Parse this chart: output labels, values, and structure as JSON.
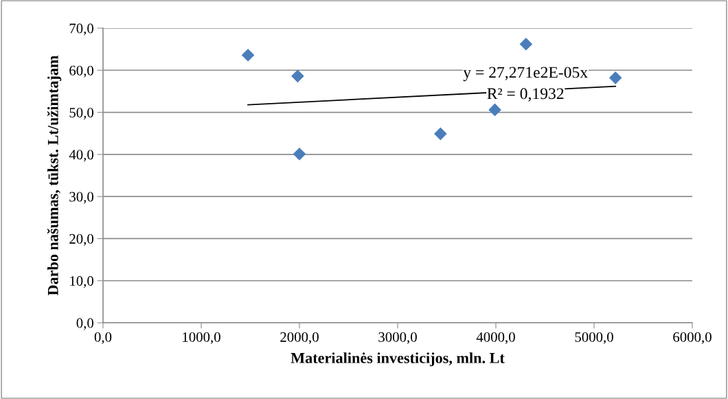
{
  "chart_data": {
    "type": "scatter",
    "xlabel": "Materialinės investicijos, mln. Lt",
    "ylabel": "Darbo našumas, tūkst. Lt/užimtajam",
    "series": [
      {
        "color": "#4a7ebb",
        "marker": "diamond",
        "x": [
          1476,
          1982,
          2000,
          3436,
          3990,
          4307,
          5218
        ],
        "values": [
          63.6,
          58.6,
          40.1,
          44.9,
          50.6,
          66.2,
          58.2
        ]
      },
      {
        "type": "line",
        "color": "#000000",
        "marker": "none",
        "x": [
          1476,
          5218
        ],
        "values": [
          51.8,
          56.2
        ]
      }
    ],
    "annotations": [
      "y = 27,271e2E-05x",
      "R² = 0,1932"
    ],
    "xlim": [
      0,
      6000
    ],
    "xticks": [
      {
        "value": 0,
        "label": "0,0"
      },
      {
        "value": 1000,
        "label": "1000,0"
      },
      {
        "value": 2000,
        "label": "2000,0"
      },
      {
        "value": 3000,
        "label": "3000,0"
      },
      {
        "value": 4000,
        "label": "4000,0"
      },
      {
        "value": 5000,
        "label": "5000,0"
      },
      {
        "value": 6000,
        "label": "6000,0"
      }
    ],
    "ylim": [
      0,
      70
    ],
    "yticks": [
      {
        "value": 0,
        "label": "0,0"
      },
      {
        "value": 10,
        "label": "10,0"
      },
      {
        "value": 20,
        "label": "20,0"
      },
      {
        "value": 30,
        "label": "30,0"
      },
      {
        "value": 40,
        "label": "40,0"
      },
      {
        "value": 50,
        "label": "50,0"
      },
      {
        "value": 60,
        "label": "60,0"
      },
      {
        "value": 70,
        "label": "70,0"
      }
    ],
    "grid": "y",
    "legend": false
  }
}
